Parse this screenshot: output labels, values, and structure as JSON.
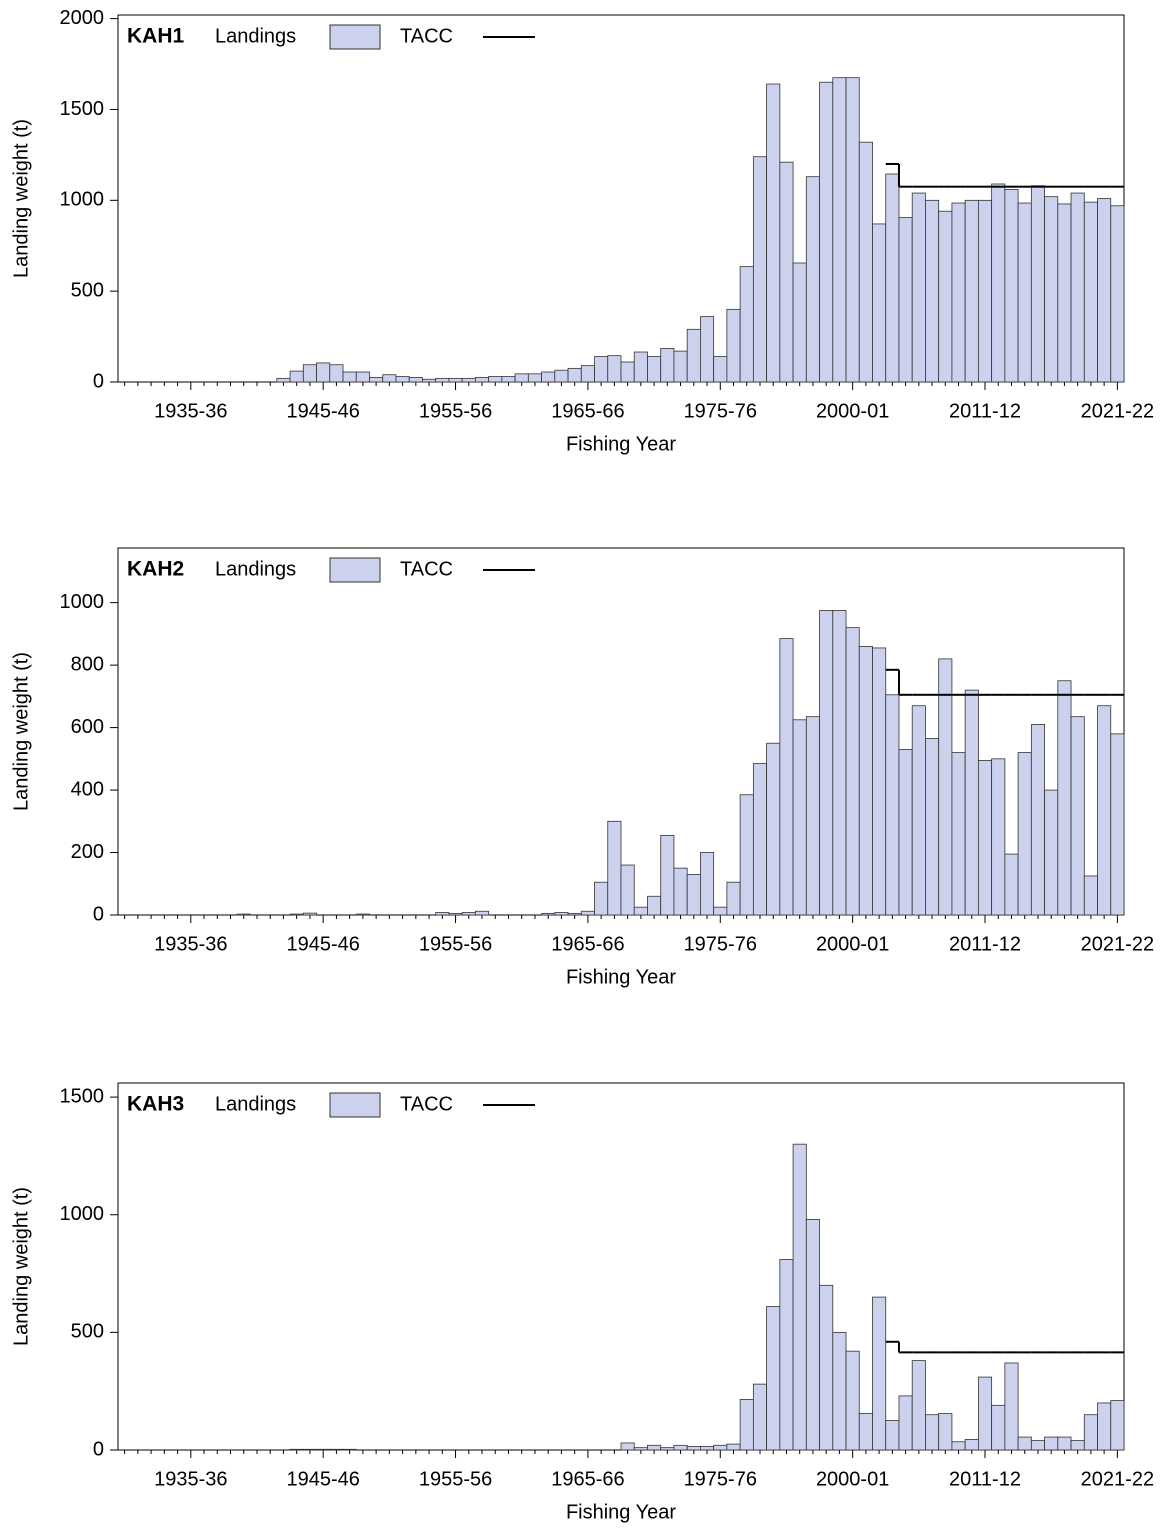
{
  "chart_data": [
    {
      "type": "bar",
      "title": "KAH1",
      "x_label": "Fishing Year",
      "y_label": "Landing weight (t)",
      "categories": [
        null,
        null,
        null,
        null,
        null,
        "1935-36",
        null,
        null,
        null,
        null,
        null,
        null,
        null,
        null,
        null,
        "1945-46",
        null,
        null,
        null,
        null,
        null,
        null,
        null,
        null,
        null,
        "1955-56",
        null,
        null,
        null,
        null,
        null,
        null,
        null,
        null,
        null,
        "1965-66",
        null,
        null,
        null,
        null,
        null,
        null,
        null,
        null,
        null,
        "1975-76",
        null,
        null,
        null,
        null,
        null,
        null,
        null,
        null,
        null,
        "2000-01",
        null,
        null,
        null,
        null,
        null,
        null,
        null,
        null,
        null,
        "2011-12",
        null,
        null,
        null,
        null,
        null,
        null,
        null,
        null,
        null,
        "2021-22"
      ],
      "series": [
        {
          "name": "Landings",
          "color": "#ccd2ee",
          "values": [
            0,
            0,
            0,
            0,
            0,
            0,
            0,
            0,
            0,
            0,
            0,
            0,
            20,
            60,
            95,
            105,
            95,
            55,
            55,
            25,
            40,
            30,
            25,
            15,
            20,
            20,
            20,
            25,
            30,
            30,
            45,
            45,
            55,
            65,
            75,
            90,
            140,
            145,
            110,
            165,
            140,
            185,
            170,
            290,
            360,
            140,
            400,
            635,
            1240,
            1640,
            1210,
            655,
            1130,
            1650,
            1675,
            1675,
            1320,
            870,
            1145,
            905,
            1040,
            1000,
            940,
            985,
            1000,
            1000,
            1090,
            1060,
            985,
            1080,
            1020,
            980,
            1040,
            990,
            1010,
            970
          ]
        },
        {
          "name": "TACC",
          "color": "#000000",
          "values": [
            null,
            null,
            null,
            null,
            null,
            null,
            null,
            null,
            null,
            null,
            null,
            null,
            null,
            null,
            null,
            null,
            null,
            null,
            null,
            null,
            null,
            null,
            null,
            null,
            null,
            null,
            null,
            null,
            null,
            null,
            null,
            null,
            null,
            null,
            null,
            null,
            null,
            null,
            null,
            null,
            null,
            null,
            null,
            null,
            null,
            null,
            null,
            null,
            null,
            null,
            null,
            null,
            null,
            null,
            null,
            null,
            null,
            null,
            1200,
            1075,
            1075,
            1075,
            1075,
            1075,
            1075,
            1075,
            1075,
            1075,
            1075,
            1075,
            1075,
            1075,
            1075,
            1075,
            1075,
            1075
          ]
        }
      ],
      "ylim": [
        0,
        2020
      ],
      "yticks": [
        0,
        500,
        1000,
        1500,
        2000
      ]
    },
    {
      "type": "bar",
      "title": "KAH2",
      "x_label": "Fishing Year",
      "y_label": "Landing weight (t)",
      "categories": [
        null,
        null,
        null,
        null,
        null,
        "1935-36",
        null,
        null,
        null,
        null,
        null,
        null,
        null,
        null,
        null,
        "1945-46",
        null,
        null,
        null,
        null,
        null,
        null,
        null,
        null,
        null,
        "1955-56",
        null,
        null,
        null,
        null,
        null,
        null,
        null,
        null,
        null,
        "1965-66",
        null,
        null,
        null,
        null,
        null,
        null,
        null,
        null,
        null,
        "1975-76",
        null,
        null,
        null,
        null,
        null,
        null,
        null,
        null,
        null,
        "2000-01",
        null,
        null,
        null,
        null,
        null,
        null,
        null,
        null,
        null,
        "2011-12",
        null,
        null,
        null,
        null,
        null,
        null,
        null,
        null,
        null,
        "2021-22"
      ],
      "series": [
        {
          "name": "Landings",
          "color": "#ccd2ee",
          "values": [
            0,
            0,
            0,
            0,
            0,
            0,
            0,
            0,
            0,
            3,
            0,
            0,
            0,
            3,
            6,
            0,
            0,
            0,
            3,
            0,
            0,
            0,
            0,
            0,
            8,
            5,
            8,
            12,
            0,
            0,
            0,
            0,
            5,
            8,
            5,
            12,
            105,
            300,
            160,
            25,
            60,
            255,
            150,
            130,
            200,
            25,
            105,
            385,
            485,
            550,
            885,
            625,
            635,
            975,
            975,
            920,
            860,
            855,
            705,
            530,
            670,
            565,
            820,
            520,
            720,
            495,
            500,
            195,
            520,
            610,
            400,
            750,
            635,
            125,
            670,
            580
          ]
        },
        {
          "name": "TACC",
          "color": "#000000",
          "values": [
            null,
            null,
            null,
            null,
            null,
            null,
            null,
            null,
            null,
            null,
            null,
            null,
            null,
            null,
            null,
            null,
            null,
            null,
            null,
            null,
            null,
            null,
            null,
            null,
            null,
            null,
            null,
            null,
            null,
            null,
            null,
            null,
            null,
            null,
            null,
            null,
            null,
            null,
            null,
            null,
            null,
            null,
            null,
            null,
            null,
            null,
            null,
            null,
            null,
            null,
            null,
            null,
            null,
            null,
            null,
            null,
            null,
            null,
            785,
            705,
            705,
            705,
            705,
            705,
            705,
            705,
            705,
            705,
            705,
            705,
            705,
            705,
            705,
            705,
            705,
            705
          ]
        }
      ],
      "ylim": [
        0,
        1175
      ],
      "yticks": [
        0,
        200,
        400,
        600,
        800,
        1000
      ]
    },
    {
      "type": "bar",
      "title": "KAH3",
      "x_label": "Fishing Year",
      "y_label": "Landing weight (t)",
      "categories": [
        null,
        null,
        null,
        null,
        null,
        "1935-36",
        null,
        null,
        null,
        null,
        null,
        null,
        null,
        null,
        null,
        "1945-46",
        null,
        null,
        null,
        null,
        null,
        null,
        null,
        null,
        null,
        "1955-56",
        null,
        null,
        null,
        null,
        null,
        null,
        null,
        null,
        null,
        "1965-66",
        null,
        null,
        null,
        null,
        null,
        null,
        null,
        null,
        null,
        "1975-76",
        null,
        null,
        null,
        null,
        null,
        null,
        null,
        null,
        null,
        "2000-01",
        null,
        null,
        null,
        null,
        null,
        null,
        null,
        null,
        null,
        "2011-12",
        null,
        null,
        null,
        null,
        null,
        null,
        null,
        null,
        null,
        "2021-22"
      ],
      "series": [
        {
          "name": "Landings",
          "color": "#ccd2ee",
          "values": [
            0,
            0,
            0,
            0,
            0,
            0,
            0,
            0,
            0,
            0,
            0,
            0,
            0,
            3,
            3,
            3,
            3,
            3,
            0,
            0,
            0,
            0,
            0,
            0,
            0,
            0,
            0,
            0,
            0,
            0,
            0,
            0,
            0,
            0,
            0,
            0,
            0,
            0,
            30,
            10,
            20,
            10,
            20,
            15,
            15,
            20,
            25,
            215,
            280,
            610,
            810,
            1300,
            980,
            700,
            500,
            420,
            155,
            650,
            125,
            230,
            380,
            150,
            155,
            35,
            45,
            310,
            190,
            370,
            55,
            40,
            55,
            55,
            40,
            150,
            200,
            210
          ]
        },
        {
          "name": "TACC",
          "color": "#000000",
          "values": [
            null,
            null,
            null,
            null,
            null,
            null,
            null,
            null,
            null,
            null,
            null,
            null,
            null,
            null,
            null,
            null,
            null,
            null,
            null,
            null,
            null,
            null,
            null,
            null,
            null,
            null,
            null,
            null,
            null,
            null,
            null,
            null,
            null,
            null,
            null,
            null,
            null,
            null,
            null,
            null,
            null,
            null,
            null,
            null,
            null,
            null,
            null,
            null,
            null,
            null,
            null,
            null,
            null,
            null,
            null,
            null,
            null,
            null,
            460,
            415,
            415,
            415,
            415,
            415,
            415,
            415,
            415,
            415,
            415,
            415,
            415,
            415,
            415,
            415,
            415,
            415
          ]
        }
      ],
      "ylim": [
        0,
        1560
      ],
      "yticks": [
        0,
        500,
        1000,
        1500
      ]
    }
  ]
}
